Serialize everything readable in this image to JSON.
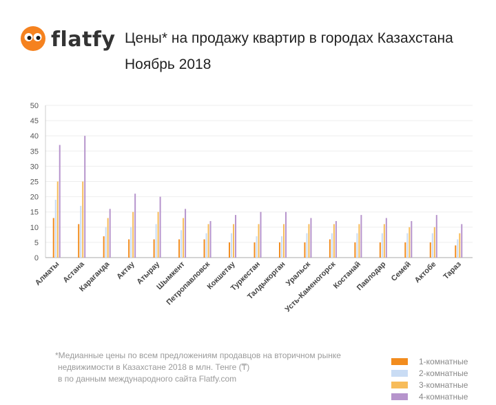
{
  "brand": {
    "name": "flatfy"
  },
  "header": {
    "title": "Цены* на продажу квартир в городах Казахстана",
    "subtitle": "Ноябрь 2018"
  },
  "footnote": {
    "lines": [
      "*Медианные цены по всем предложениям продавцов на вторичном рынке",
      "недвижимости в Казахстане 2018 в млн. Тенге (₸)",
      "в по данным международного сайта Flatfy.com"
    ]
  },
  "colors": {
    "logo": "#f5821f",
    "axis": "#cccccc",
    "grid": "#eeeeee",
    "tick_text": "#555555"
  },
  "chart_data": {
    "type": "bar",
    "categories": [
      "Алматы",
      "Астана",
      "Караганда",
      "Актау",
      "Атырау",
      "Шымкент",
      "Петропавловск",
      "Кокшетау",
      "Туркестан",
      "Талдыкорган",
      "Уральск",
      "Усть-Каменогорск",
      "Костанай",
      "Павлодар",
      "Семей",
      "Актобе",
      "Тараз"
    ],
    "series": [
      {
        "name": "1-комнатные",
        "color": "#f28c1e",
        "values": [
          13,
          11,
          7,
          6,
          6,
          6,
          6,
          5,
          5,
          5,
          5,
          6,
          5,
          5,
          5,
          5,
          4
        ]
      },
      {
        "name": "2-комнатные",
        "color": "#c9dcf4",
        "values": [
          19,
          17,
          10,
          10,
          11,
          9,
          8,
          8,
          7,
          7,
          8,
          8,
          8,
          8,
          8,
          8,
          6
        ]
      },
      {
        "name": "3-комнатные",
        "color": "#f7bc5a",
        "values": [
          25,
          25,
          13,
          15,
          15,
          13,
          11,
          11,
          11,
          11,
          11,
          11,
          11,
          11,
          10,
          10,
          8
        ]
      },
      {
        "name": "4-комнатные",
        "color": "#b694cc",
        "values": [
          37,
          40,
          16,
          21,
          20,
          16,
          12,
          14,
          15,
          15,
          13,
          12,
          14,
          13,
          12,
          14,
          11
        ]
      }
    ],
    "yticks": [
      0,
      5,
      10,
      15,
      20,
      25,
      30,
      35,
      40,
      45,
      50
    ],
    "ylim": [
      0,
      50
    ],
    "grid": true,
    "legend_position": "bottom-right"
  }
}
